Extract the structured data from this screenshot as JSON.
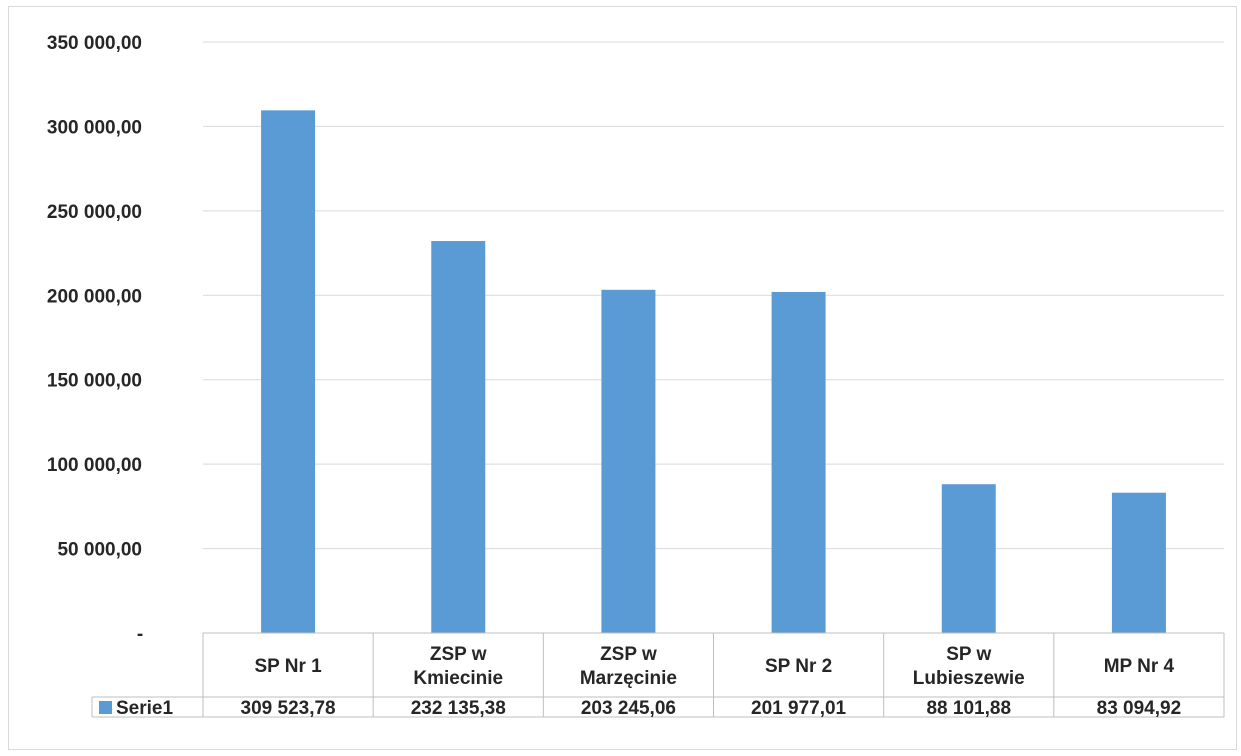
{
  "chart_data": {
    "type": "bar",
    "categories": [
      [
        "SP Nr 1"
      ],
      [
        "ZSP w",
        "Kmiecinie"
      ],
      [
        "ZSP w",
        "Marzęcinie"
      ],
      [
        "SP Nr 2"
      ],
      [
        "SP w",
        "Lubieszewie"
      ],
      [
        "MP Nr 4"
      ]
    ],
    "series": [
      {
        "name": "Serie1",
        "values": [
          309523.78,
          232135.38,
          203245.06,
          201977.01,
          88101.88,
          83094.92
        ],
        "value_labels": [
          "309 523,78",
          "232 135,38",
          "203 245,06",
          "201 977,01",
          "88 101,88",
          "83 094,92"
        ],
        "color": "#5b9bd5"
      }
    ],
    "y_ticks": [
      {
        "value": 0,
        "label": "-"
      },
      {
        "value": 50000,
        "label": "50 000,00"
      },
      {
        "value": 100000,
        "label": "100 000,00"
      },
      {
        "value": 150000,
        "label": "150 000,00"
      },
      {
        "value": 200000,
        "label": "200 000,00"
      },
      {
        "value": 250000,
        "label": "250 000,00"
      },
      {
        "value": 300000,
        "label": "300 000,00"
      },
      {
        "value": 350000,
        "label": "350 000,00"
      }
    ],
    "ylim": [
      0,
      350000
    ],
    "grid": true,
    "legend": "data-table",
    "title": "",
    "xlabel": "",
    "ylabel": ""
  }
}
